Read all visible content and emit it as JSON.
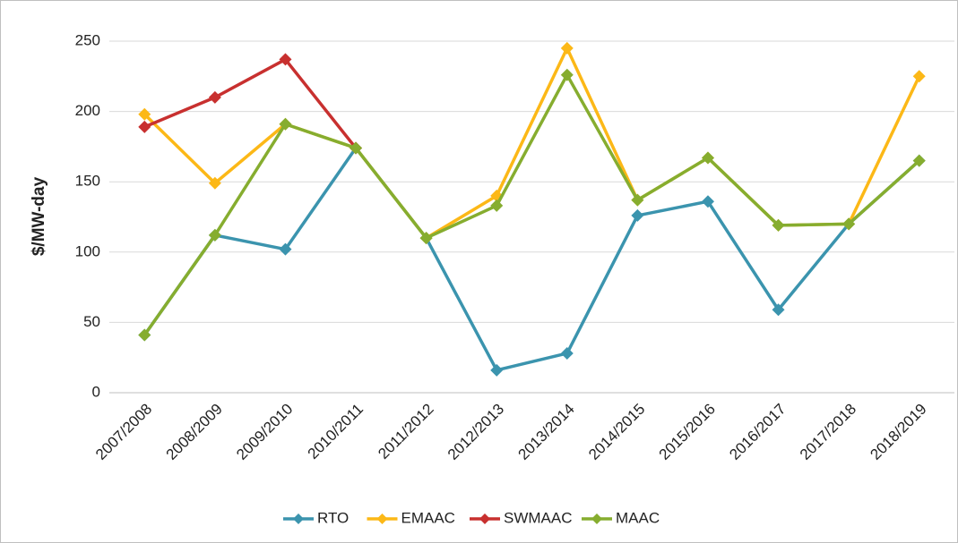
{
  "chart_data": {
    "type": "line",
    "y_label": "$/MW-day",
    "categories": [
      "2007/2008",
      "2008/2009",
      "2009/2010",
      "2010/2011",
      "2011/2012",
      "2012/2013",
      "2013/2014",
      "2014/2015",
      "2015/2016",
      "2016/2017",
      "2017/2018",
      "2018/2019"
    ],
    "series": [
      {
        "name": "RTO",
        "color": "#3b94ae",
        "values": [
          41,
          112,
          102,
          174,
          110,
          16,
          28,
          126,
          136,
          59,
          120,
          165
        ]
      },
      {
        "name": "EMAAC",
        "color": "#fcb817",
        "values": [
          198,
          149,
          191,
          174,
          110,
          140,
          245,
          137,
          167,
          119,
          120,
          225
        ]
      },
      {
        "name": "SWMAAC",
        "color": "#c8302f",
        "values": [
          189,
          210,
          237,
          174,
          null,
          null,
          null,
          null,
          null,
          null,
          null,
          null
        ]
      },
      {
        "name": "MAAC",
        "color": "#86ad2f",
        "values": [
          41,
          112,
          191,
          174,
          110,
          133,
          226,
          137,
          167,
          119,
          120,
          165
        ]
      }
    ],
    "ylim": [
      0,
      250
    ],
    "yticks": [
      0,
      50,
      100,
      150,
      200,
      250
    ],
    "grid": true,
    "legend": "bottom"
  }
}
